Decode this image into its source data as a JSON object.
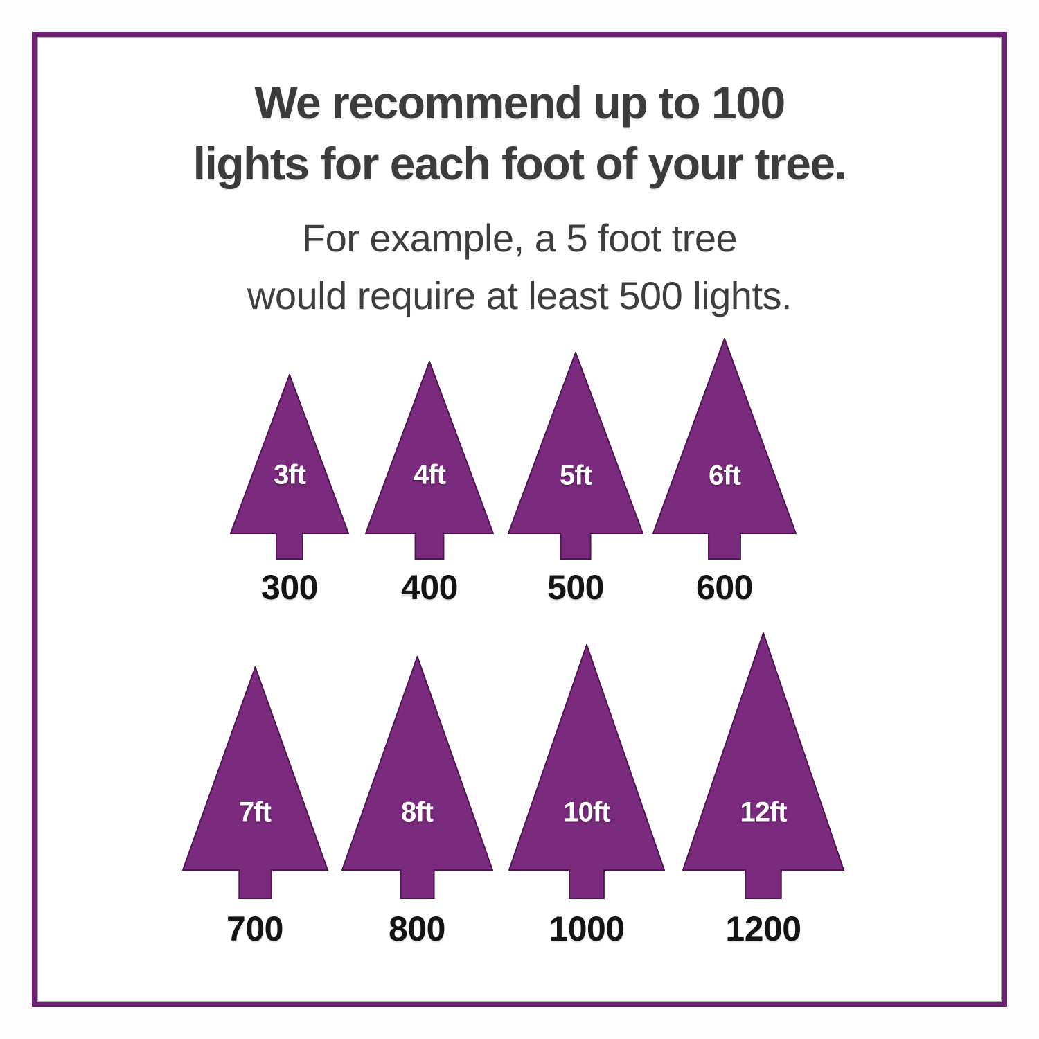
{
  "title_line1": "We recommend up to 100",
  "title_line2": "lights for each foot of your tree.",
  "subtitle_line1": "For example, a 5 foot tree",
  "subtitle_line2": "would require at least 500 lights.",
  "colors": {
    "frame_border": "#6f2173",
    "tree_fill": "#7b2b7d",
    "tree_stroke": "#4f1553",
    "title_text": "#3c3c3c",
    "count_text": "#141414",
    "tree_label_text": "#ffffff"
  },
  "trees": [
    {
      "label": "3ft",
      "lights": "300"
    },
    {
      "label": "4ft",
      "lights": "400"
    },
    {
      "label": "5ft",
      "lights": "500"
    },
    {
      "label": "6ft",
      "lights": "600"
    },
    {
      "label": "7ft",
      "lights": "700"
    },
    {
      "label": "8ft",
      "lights": "800"
    },
    {
      "label": "10ft",
      "lights": "1000"
    },
    {
      "label": "12ft",
      "lights": "1200"
    }
  ],
  "chart_data": {
    "type": "bar",
    "title": "We recommend up to 100 lights for each foot of your tree.",
    "subtitle": "For example, a 5 foot tree would require at least 500 lights.",
    "categories": [
      "3ft",
      "4ft",
      "5ft",
      "6ft",
      "7ft",
      "8ft",
      "10ft",
      "12ft"
    ],
    "values": [
      300,
      400,
      500,
      600,
      700,
      800,
      1000,
      1200
    ],
    "xlabel": "",
    "ylabel": "",
    "legend": false,
    "layout": "pictograph of scaled trees in two rows of four"
  }
}
